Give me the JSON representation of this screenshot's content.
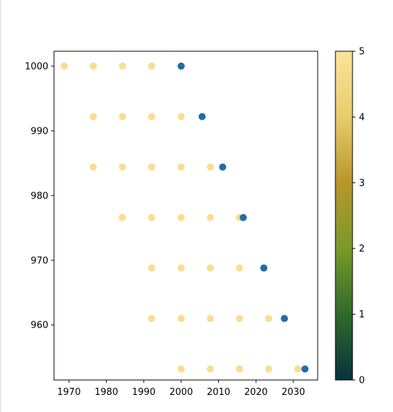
{
  "chart_data": {
    "type": "scatter",
    "title": "",
    "xlabel": "",
    "ylabel": "",
    "xlim": [
      1966,
      2036.5
    ],
    "ylim": [
      951.5,
      1002.3
    ],
    "x_ticks": [
      1970,
      1980,
      1990,
      2000,
      2010,
      2020,
      2030
    ],
    "y_ticks": [
      960,
      970,
      980,
      990,
      1000
    ],
    "grid": false,
    "colorbar": {
      "range": [
        0,
        5
      ],
      "ticks": [
        0,
        1,
        2,
        3,
        4,
        5
      ],
      "colormap": [
        "#07333f",
        "#2f6a2a",
        "#7a9a2a",
        "#b8952a",
        "#e8cc6a",
        "#fbe39a"
      ]
    },
    "series": [
      {
        "color_value": 5,
        "color": "#fbdc90",
        "points": [
          {
            "x": 1968.7,
            "y": 1000.0
          },
          {
            "x": 1976.5,
            "y": 1000.0
          },
          {
            "x": 1984.3,
            "y": 1000.0
          },
          {
            "x": 1992.1,
            "y": 1000.0
          },
          {
            "x": 1976.5,
            "y": 992.2
          },
          {
            "x": 1984.3,
            "y": 992.2
          },
          {
            "x": 1992.1,
            "y": 992.2
          },
          {
            "x": 2000.0,
            "y": 992.2
          },
          {
            "x": 1976.5,
            "y": 984.4
          },
          {
            "x": 1984.3,
            "y": 984.4
          },
          {
            "x": 1992.1,
            "y": 984.4
          },
          {
            "x": 2000.0,
            "y": 984.4
          },
          {
            "x": 2007.8,
            "y": 984.4
          },
          {
            "x": 1984.3,
            "y": 976.6
          },
          {
            "x": 1992.1,
            "y": 976.6
          },
          {
            "x": 2000.0,
            "y": 976.6
          },
          {
            "x": 2007.8,
            "y": 976.6
          },
          {
            "x": 2015.6,
            "y": 976.6
          },
          {
            "x": 1992.1,
            "y": 968.8
          },
          {
            "x": 2000.0,
            "y": 968.8
          },
          {
            "x": 2007.8,
            "y": 968.8
          },
          {
            "x": 2015.6,
            "y": 968.8
          },
          {
            "x": 1992.1,
            "y": 961.0
          },
          {
            "x": 2000.0,
            "y": 961.0
          },
          {
            "x": 2007.8,
            "y": 961.0
          },
          {
            "x": 2015.6,
            "y": 961.0
          },
          {
            "x": 2023.4,
            "y": 961.0
          },
          {
            "x": 2000.0,
            "y": 953.2
          },
          {
            "x": 2007.8,
            "y": 953.2
          },
          {
            "x": 2015.6,
            "y": 953.2
          },
          {
            "x": 2023.4,
            "y": 953.2
          },
          {
            "x": 2031.2,
            "y": 953.2
          }
        ]
      },
      {
        "color": "#1f6ea6",
        "points": [
          {
            "x": 2000.0,
            "y": 1000.0
          },
          {
            "x": 2005.6,
            "y": 992.2
          },
          {
            "x": 2011.1,
            "y": 984.4
          },
          {
            "x": 2016.6,
            "y": 976.6
          },
          {
            "x": 2022.1,
            "y": 968.8
          },
          {
            "x": 2027.6,
            "y": 961.0
          },
          {
            "x": 2033.1,
            "y": 953.2
          }
        ]
      }
    ]
  }
}
